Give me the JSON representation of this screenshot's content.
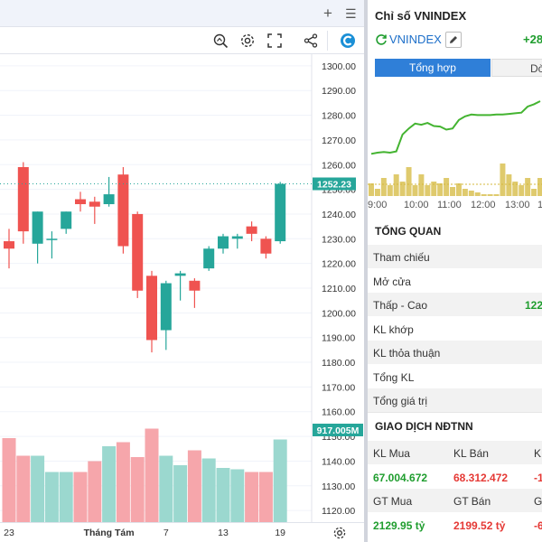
{
  "chart_panel": {
    "tab_controls": {
      "add": "+",
      "menu": "☰"
    },
    "toolbar_icons": [
      "zoom-icon",
      "settings-icon",
      "fullscreen-icon",
      "share-icon",
      "logo-icon"
    ]
  },
  "chart_data": {
    "type": "candlestick",
    "title": "",
    "price_axis_ticks": [
      1300,
      1290,
      1280,
      1270,
      1260,
      1250,
      1240,
      1230,
      1220,
      1210,
      1200,
      1190,
      1180,
      1170,
      1160,
      1150,
      1140,
      1130,
      1120
    ],
    "price_axis_labels": [
      "1300.00",
      "1290.00",
      "1280.00",
      "1270.00",
      "1260.00",
      "1250.00",
      "1240.00",
      "1230.00",
      "1220.00",
      "1210.00",
      "1200.00",
      "1190.00",
      "1180.00",
      "1170.00",
      "1160.00",
      "1150.00",
      "1140.00",
      "1130.00",
      "1120.00"
    ],
    "ylim": [
      1115.3,
      1304.7
    ],
    "last_price": 1252.23,
    "last_price_label": "1252.23",
    "last_volume_label": "917.005M",
    "x_labels": [
      {
        "index": 0,
        "text": "23"
      },
      {
        "index": 7,
        "text": "Tháng Tám"
      },
      {
        "index": 11,
        "text": "7"
      },
      {
        "index": 15,
        "text": "13"
      },
      {
        "index": 19,
        "text": "19"
      }
    ],
    "candles": [
      {
        "o": 1229,
        "h": 1234,
        "l": 1218,
        "c": 1226
      },
      {
        "o": 1259,
        "h": 1261,
        "l": 1228,
        "c": 1233
      },
      {
        "o": 1228,
        "h": 1241,
        "l": 1220,
        "c": 1241
      },
      {
        "o": 1230,
        "h": 1233,
        "l": 1222,
        "c": 1230
      },
      {
        "o": 1234,
        "h": 1241,
        "l": 1232,
        "c": 1241
      },
      {
        "o": 1246,
        "h": 1249,
        "l": 1241,
        "c": 1244
      },
      {
        "o": 1245,
        "h": 1247,
        "l": 1236,
        "c": 1243
      },
      {
        "o": 1244,
        "h": 1255,
        "l": 1243,
        "c": 1248
      },
      {
        "o": 1256,
        "h": 1259,
        "l": 1224,
        "c": 1227
      },
      {
        "o": 1240,
        "h": 1241,
        "l": 1206,
        "c": 1209
      },
      {
        "o": 1215,
        "h": 1217,
        "l": 1184,
        "c": 1189
      },
      {
        "o": 1193,
        "h": 1213,
        "l": 1185,
        "c": 1212
      },
      {
        "o": 1215,
        "h": 1217,
        "l": 1205,
        "c": 1216
      },
      {
        "o": 1213,
        "h": 1214,
        "l": 1202,
        "c": 1209
      },
      {
        "o": 1218,
        "h": 1227,
        "l": 1217,
        "c": 1226
      },
      {
        "o": 1226,
        "h": 1232,
        "l": 1224,
        "c": 1231
      },
      {
        "o": 1230,
        "h": 1232,
        "l": 1226,
        "c": 1231
      },
      {
        "o": 1235,
        "h": 1237,
        "l": 1229,
        "c": 1232
      },
      {
        "o": 1230,
        "h": 1231,
        "l": 1222,
        "c": 1224
      },
      {
        "o": 1229,
        "h": 1253,
        "l": 1228,
        "c": 1252.23
      }
    ],
    "volume_relative": [
      0.62,
      0.49,
      0.49,
      0.37,
      0.37,
      0.37,
      0.45,
      0.56,
      0.59,
      0.48,
      0.69,
      0.49,
      0.42,
      0.53,
      0.47,
      0.4,
      0.39,
      0.37,
      0.37,
      0.61
    ]
  },
  "info_panel": {
    "title": "Chỉ số VNINDEX",
    "symbol": "VNINDEX",
    "change": "+28",
    "tabs": {
      "summary": "Tổng hợp",
      "other": "Dòn"
    },
    "intraday": {
      "time_labels": [
        "9:00",
        "10:00",
        "11:00",
        "12:00",
        "13:00",
        "1"
      ],
      "line": [
        0.1,
        0.12,
        0.13,
        0.12,
        0.14,
        0.42,
        0.52,
        0.6,
        0.58,
        0.61,
        0.56,
        0.55,
        0.5,
        0.52,
        0.66,
        0.72,
        0.75,
        0.74,
        0.74,
        0.74,
        0.75,
        0.75,
        0.76,
        0.77,
        0.78,
        0.88,
        0.92,
        0.97
      ],
      "volume": [
        0.35,
        0.2,
        0.5,
        0.3,
        0.6,
        0.4,
        0.8,
        0.3,
        0.6,
        0.3,
        0.4,
        0.35,
        0.5,
        0.25,
        0.35,
        0.2,
        0.15,
        0.1,
        0.05,
        0.05,
        0.05,
        0.9,
        0.6,
        0.4,
        0.3,
        0.5,
        0.2,
        0.5
      ]
    },
    "overview": {
      "title": "TỔNG QUAN",
      "rows": [
        {
          "label": "Tham chiếu",
          "value": ""
        },
        {
          "label": "Mở cửa",
          "value": ""
        },
        {
          "label": "Thấp - Cao",
          "value": "122"
        },
        {
          "label": "KL khớp",
          "value": ""
        },
        {
          "label": "KL thỏa thuận",
          "value": ""
        },
        {
          "label": "Tổng KL",
          "value": ""
        },
        {
          "label": "Tổng giá trị",
          "value": ""
        }
      ]
    },
    "foreign": {
      "title": "GIAO DỊCH NĐTNN",
      "kl_mua_label": "KL Mua",
      "kl_ban_label": "KL Bán",
      "kl_net_label": "K",
      "kl_mua": "67.004.672",
      "kl_ban": "68.312.472",
      "kl_net": "-1",
      "gt_mua_label": "GT Mua",
      "gt_ban_label": "GT Bán",
      "gt_net_label": "G",
      "gt_mua": "2129.95 tỷ",
      "gt_ban": "2199.52 tỷ",
      "gt_net": "-6"
    }
  },
  "colors": {
    "up": "#26a69a",
    "down": "#ef5350",
    "up_volume": "#9bd8cf",
    "down_volume": "#f6a6ab",
    "accent_blue": "#2f7fd8",
    "green_text": "#1f9d2e",
    "red_text": "#e53935",
    "intraday_line": "#44b431",
    "intraday_volume": "#d4b83c"
  }
}
